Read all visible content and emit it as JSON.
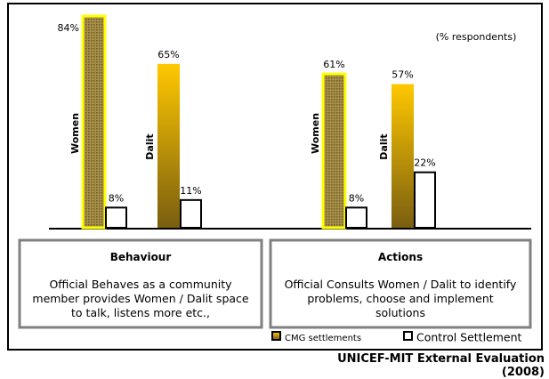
{
  "chart_data": {
    "type": "bar",
    "subtitle": "(% respondents)",
    "source": "UNICEF-MIT External Evaluation (2008)",
    "categories": [
      "Women",
      "Dalit",
      "Women",
      "Dalit"
    ],
    "series": [
      {
        "name": "CMG settlements",
        "color": "#e6b800",
        "values": [
          84,
          65,
          61,
          57
        ],
        "value_labels": [
          "84%",
          "65%",
          "61%",
          "57%"
        ]
      },
      {
        "name": "Control Settlement",
        "color": "#ffffff",
        "values": [
          8,
          11,
          8,
          22
        ],
        "value_labels": [
          "8%",
          "11%",
          "8%",
          "22%"
        ]
      }
    ],
    "panels": [
      {
        "title": "Behaviour",
        "text": "Official Behaves as a community member provides Women / Dalit space to talk, listens more etc.,"
      },
      {
        "title": "Actions",
        "text": "Official Consults Women / Dalit to identify problems, choose and implement solutions"
      }
    ]
  }
}
